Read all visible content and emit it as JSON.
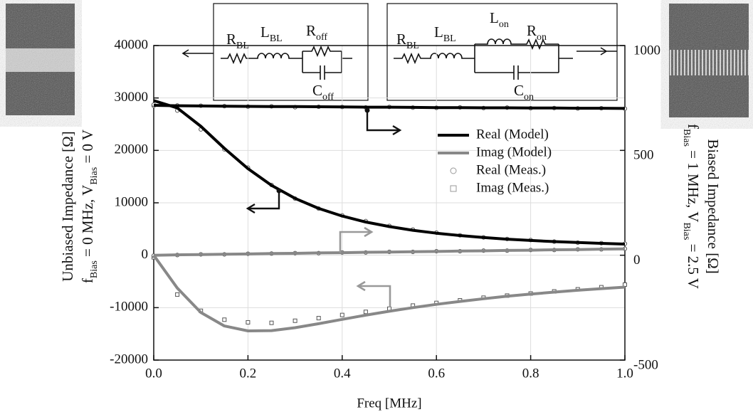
{
  "chart_data": {
    "type": "line",
    "x_label": "Freq [MHz]",
    "y_label": [
      [
        {
          "text": "Unbiased Impedance [Ω]"
        }
      ],
      [
        {
          "text": "f"
        },
        {
          "text": "Bias",
          "sub": true
        },
        {
          "text": " = 0 MHz, V"
        },
        {
          "text": "Bias",
          "sub": true
        },
        {
          "text": " = 0 V"
        }
      ]
    ],
    "y2_label": [
      [
        {
          "text": "Biased Impedance [Ω]"
        }
      ],
      [
        {
          "text": "f"
        },
        {
          "text": "Bias",
          "sub": true
        },
        {
          "text": " = 1 MHz, V"
        },
        {
          "text": "Bias",
          "sub": true
        },
        {
          "text": " = 2.5 V"
        }
      ]
    ],
    "x": [
      0,
      0.05,
      0.1,
      0.15,
      0.2,
      0.25,
      0.3,
      0.35,
      0.4,
      0.45,
      0.5,
      0.55,
      0.6,
      0.65,
      0.7,
      0.75,
      0.8,
      0.85,
      0.9,
      0.95,
      1.0
    ],
    "xlim": [
      0,
      1.0
    ],
    "xticks": [
      {
        "value": 0,
        "label": "0.0"
      },
      0.2,
      0.4,
      0.6,
      0.8,
      {
        "value": 1.0,
        "label": "1.0"
      }
    ],
    "ylim": [
      -20000,
      40000
    ],
    "yticks": [
      -20000,
      -10000,
      0,
      10000,
      20000,
      30000,
      40000
    ],
    "y2lim": [
      -500,
      1000
    ],
    "y2ticks": [
      -500,
      0,
      500,
      1000
    ],
    "grid": true,
    "series": [
      {
        "name": "Real (Model)",
        "color": "#000000",
        "marker": "line",
        "values": [
          29500,
          28090,
          24590,
          20390,
          16510,
          13330,
          10840,
          8930,
          7470,
          6340,
          5460,
          4760,
          4200,
          3750,
          3380,
          3070,
          2820,
          2600,
          2420,
          2260,
          2130
        ]
      },
      {
        "name": "Imag (Model)",
        "color": "#888888",
        "marker": "line",
        "values": [
          0,
          -6260,
          -10920,
          -13500,
          -14430,
          -14380,
          -13830,
          -13070,
          -12240,
          -11440,
          -10690,
          -10000,
          -9370,
          -8810,
          -8300,
          -7830,
          -7420,
          -7030,
          -6690,
          -6370,
          -6090
        ]
      },
      {
        "name": "Real (Meas.)",
        "color": "#555555",
        "marker": "circle",
        "values": [
          28500,
          27600,
          24000,
          20200,
          16700,
          13400,
          10800,
          8900,
          7600,
          6500,
          5600,
          4900,
          4300,
          3800,
          3400,
          3100,
          2900,
          2600,
          2400,
          2300,
          2200
        ]
      },
      {
        "name": "Imag (Meas.)",
        "color": "#555555",
        "marker": "square",
        "values": [
          -400,
          -7500,
          -10600,
          -12300,
          -12800,
          -12900,
          -12500,
          -12000,
          -11400,
          -10800,
          -10200,
          -9600,
          -9100,
          -8600,
          -8100,
          -7700,
          -7300,
          -6900,
          -6500,
          -6100,
          -5600
        ]
      },
      {
        "color": "#000000",
        "marker": "line",
        "axis": "y2",
        "values": [
          715,
          713,
          712,
          711,
          710,
          709,
          709,
          708,
          707,
          706,
          706,
          705,
          704,
          704,
          703,
          703,
          702,
          702,
          701,
          701,
          700
        ]
      },
      {
        "color": "#888888",
        "marker": "line",
        "axis": "y2",
        "values": [
          0,
          2,
          3,
          5,
          6,
          8,
          9,
          11,
          12,
          14,
          15,
          17,
          18,
          20,
          21,
          23,
          24,
          26,
          27,
          29,
          30
        ]
      },
      {
        "color": "#555555",
        "marker": "circle",
        "axis": "y2",
        "values": [
          718,
          714,
          713,
          711,
          709,
          710,
          706,
          708,
          707,
          705,
          707,
          704,
          703,
          705,
          702,
          704,
          701,
          702,
          700,
          701,
          699
        ]
      },
      {
        "color": "#555555",
        "marker": "circle",
        "axis": "y2",
        "values": [
          -2,
          1,
          4,
          4,
          7,
          8,
          10,
          10,
          13,
          13,
          16,
          16,
          19,
          19,
          22,
          22,
          25,
          25,
          28,
          28,
          31
        ]
      }
    ],
    "circuits": [
      {
        "labels": [
          {
            "text": "R",
            "sub": "BL"
          },
          {
            "text": "L",
            "sub": "BL"
          },
          {
            "text": "R",
            "sub": "off"
          },
          {
            "text": "C",
            "sub": "off"
          }
        ]
      },
      {
        "labels": [
          {
            "text": "R",
            "sub": "BL"
          },
          {
            "text": "L",
            "sub": "BL"
          },
          {
            "text": "L",
            "sub": "on"
          },
          {
            "text": "R",
            "sub": "on"
          },
          {
            "text": "C",
            "sub": "on"
          }
        ]
      }
    ]
  }
}
